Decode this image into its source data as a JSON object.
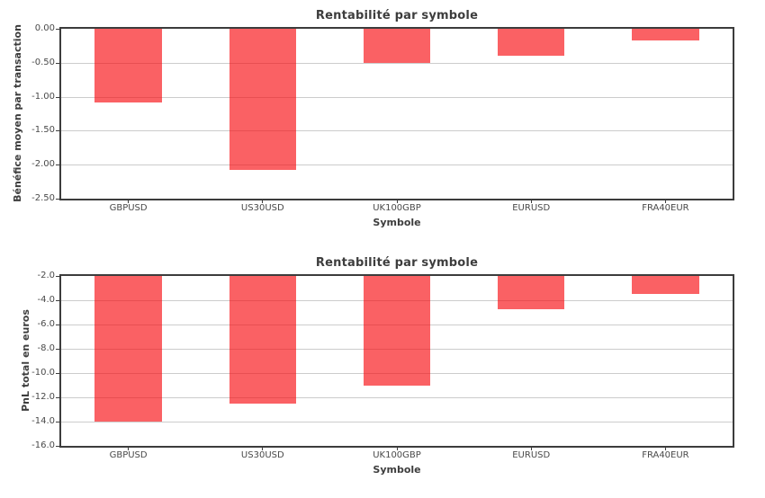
{
  "figure": {
    "background": "#ffffff"
  },
  "colors": {
    "bar": "#fa6164",
    "grid": "#cccccc",
    "spine": "#3c3c3c",
    "title_text": "#3d3d3d",
    "tick_text": "#4a4a4a"
  },
  "chart_data": [
    {
      "type": "bar",
      "title": "Rentabilité par symbole",
      "xlabel": "Symbole",
      "ylabel": "Bénéfice moyen par transaction",
      "categories": [
        "GBPUSD",
        "US30USD",
        "UK100GBP",
        "EURUSD",
        "FRA40EUR"
      ],
      "values": [
        -1.08,
        -2.08,
        -0.5,
        -0.39,
        -0.17
      ],
      "ylim": [
        -2.5,
        0.0
      ],
      "yticks": [
        0.0,
        -0.5,
        -1.0,
        -1.5,
        -2.0,
        -2.5
      ],
      "ytick_labels": [
        "0.00",
        "-0.50",
        "-1.00",
        "-1.50",
        "-2.00",
        "-2.50"
      ],
      "grid": true,
      "legend": false,
      "bar_origin": 0,
      "bar_width_fraction": 0.5,
      "bar_color": "#fa6164"
    },
    {
      "type": "bar",
      "title": "Rentabilité par symbole",
      "xlabel": "Symbole",
      "ylabel": "PnL total en euros",
      "categories": [
        "GBPUSD",
        "US30USD",
        "UK100GBP",
        "EURUSD",
        "FRA40EUR"
      ],
      "values": [
        -14.0,
        -12.5,
        -11.0,
        -4.7,
        -3.5
      ],
      "ylim": [
        -16.0,
        -2.0
      ],
      "yticks": [
        -2.0,
        -4.0,
        -6.0,
        -8.0,
        -10.0,
        -12.0,
        -14.0,
        -16.0
      ],
      "ytick_labels": [
        "-2.0",
        "-4.0",
        "-6.0",
        "-8.0",
        "-10.0",
        "-12.0",
        "-14.0",
        "-16.0"
      ],
      "grid": true,
      "legend": false,
      "bar_origin": 0,
      "bar_width_fraction": 0.5,
      "bar_color": "#fa6164",
      "note_bars_clipped_at_axis_top": true
    }
  ]
}
